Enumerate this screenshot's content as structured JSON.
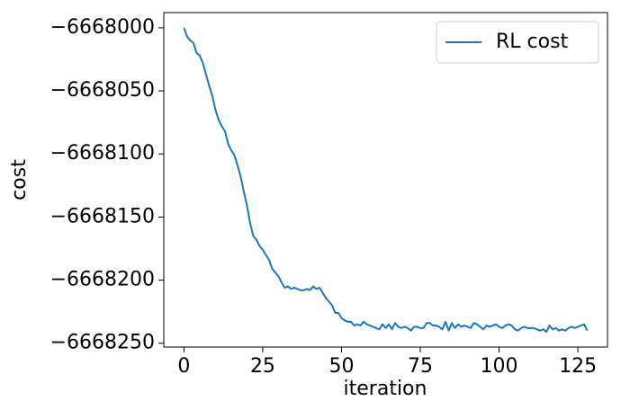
{
  "chart_data": {
    "type": "line",
    "xlabel": "iteration",
    "ylabel": "cost",
    "x": [
      0,
      1,
      2,
      3,
      4,
      5,
      6,
      7,
      8,
      9,
      10,
      11,
      12,
      13,
      14,
      15,
      16,
      17,
      18,
      19,
      20,
      21,
      22,
      23,
      24,
      25,
      26,
      27,
      28,
      29,
      30,
      31,
      32,
      33,
      34,
      35,
      36,
      37,
      38,
      39,
      40,
      41,
      42,
      43,
      44,
      45,
      46,
      47,
      48,
      49,
      50,
      51,
      52,
      53,
      54,
      55,
      56,
      57,
      58,
      59,
      60,
      61,
      62,
      63,
      64,
      65,
      66,
      67,
      68,
      69,
      70,
      71,
      72,
      73,
      74,
      75,
      76,
      77,
      78,
      79,
      80,
      81,
      82,
      83,
      84,
      85,
      86,
      87,
      88,
      89,
      90,
      91,
      92,
      93,
      94,
      95,
      96,
      97,
      98,
      99,
      100,
      101,
      102,
      103,
      104,
      105,
      106,
      107,
      108,
      109,
      110,
      111,
      112,
      113,
      114,
      115,
      116,
      117,
      118,
      119,
      120,
      121,
      122,
      123,
      124,
      125,
      126,
      127,
      128
    ],
    "series": [
      {
        "name": "RL cost",
        "color": "#1f77b4",
        "values": [
          -6668000,
          -6668007,
          -6668010,
          -6668012,
          -6668020,
          -6668022,
          -6668028,
          -6668037,
          -6668046,
          -6668054,
          -6668065,
          -6668073,
          -6668078,
          -6668082,
          -6668092,
          -6668097,
          -6668101,
          -6668109,
          -6668118,
          -6668130,
          -6668141,
          -6668155,
          -6668165,
          -6668168,
          -6668173,
          -6668176,
          -6668180,
          -6668184,
          -6668191,
          -6668194,
          -6668197,
          -6668202,
          -6668206,
          -6668205,
          -6668207,
          -6668206,
          -6668207,
          -6668208,
          -6668208,
          -6668207,
          -6668208,
          -6668205,
          -6668207,
          -6668206,
          -6668210,
          -6668214,
          -6668217,
          -6668220,
          -6668226,
          -6668226,
          -6668230,
          -6668232,
          -6668233,
          -6668233,
          -6668236,
          -6668235,
          -6668236,
          -6668233,
          -6668235,
          -6668236,
          -6668237,
          -6668238,
          -6668239,
          -6668235,
          -6668238,
          -6668235,
          -6668239,
          -6668234,
          -6668237,
          -6668238,
          -6668237,
          -6668238,
          -6668240,
          -6668237,
          -6668237,
          -6668238,
          -6668238,
          -6668234,
          -6668234,
          -6668236,
          -6668236,
          -6668237,
          -6668239,
          -6668233,
          -6668240,
          -6668234,
          -6668238,
          -6668235,
          -6668237,
          -6668236,
          -6668237,
          -6668238,
          -6668234,
          -6668235,
          -6668237,
          -6668239,
          -6668236,
          -6668237,
          -6668236,
          -6668235,
          -6668237,
          -6668238,
          -6668236,
          -6668235,
          -6668236,
          -6668239,
          -6668240,
          -6668238,
          -6668237,
          -6668238,
          -6668238,
          -6668238,
          -6668239,
          -6668240,
          -6668239,
          -6668241,
          -6668236,
          -6668239,
          -6668238,
          -6668240,
          -6668239,
          -6668240,
          -6668238,
          -6668237,
          -6668238,
          -6668237,
          -6668236,
          -6668235,
          -6668240
        ]
      }
    ],
    "xlim": [
      -6.4,
      134.4
    ],
    "xticks": [
      0,
      25,
      50,
      75,
      100,
      125
    ],
    "ylim": [
      -6668253.05,
      -6667987.95
    ],
    "yticks": [
      {
        "value": -6668250,
        "label": "−6668250"
      },
      {
        "value": -6668200,
        "label": "−6668200"
      },
      {
        "value": -6668150,
        "label": "−6668150"
      },
      {
        "value": -6668100,
        "label": "−6668100"
      },
      {
        "value": -6668050,
        "label": "−6668050"
      },
      {
        "value": -6668000,
        "label": "−6668000"
      }
    ],
    "legend": "upper right"
  }
}
